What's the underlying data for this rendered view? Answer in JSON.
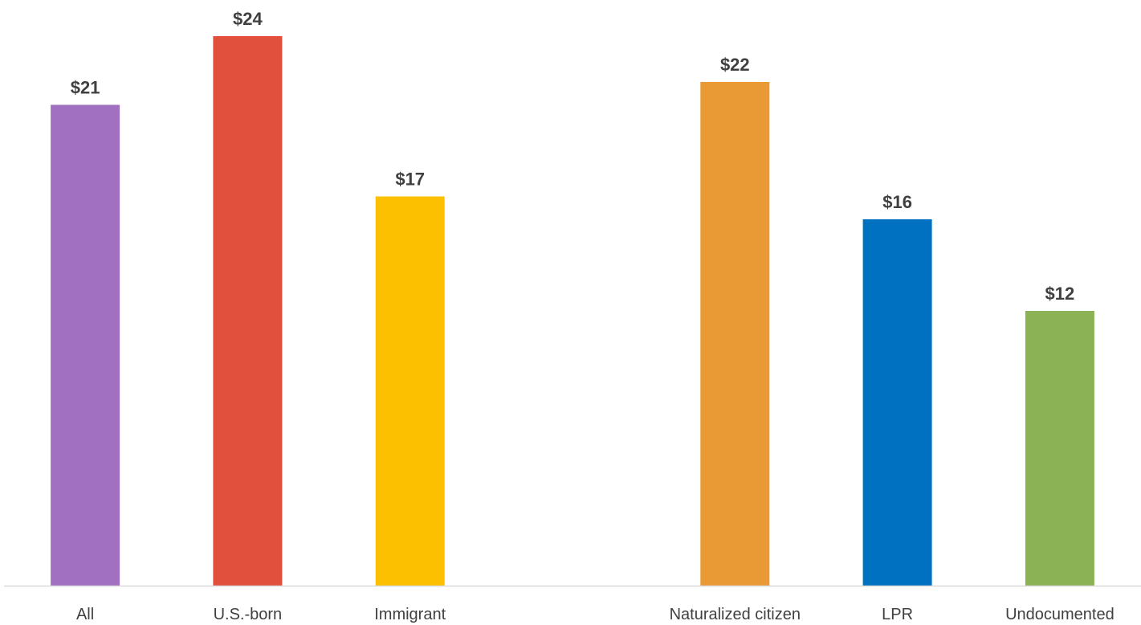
{
  "chart_data": {
    "type": "bar",
    "categories": [
      "All",
      "U.S.-born",
      "Immigrant",
      "",
      "Naturalized citizen",
      "LPR",
      "Undocumented"
    ],
    "values": [
      21,
      24,
      17,
      null,
      22,
      16,
      12
    ],
    "value_labels": [
      "$21",
      "$24",
      "$17",
      "",
      "$22",
      "$16",
      "$12"
    ],
    "colors": [
      "#A270C0",
      "#E0503C",
      "#FDC000",
      null,
      "#EA9A35",
      "#0070C0",
      "#8BB356"
    ],
    "title": "",
    "xlabel": "",
    "ylabel": "",
    "ylim": [
      0,
      25
    ],
    "grid": false,
    "legend": "none"
  }
}
